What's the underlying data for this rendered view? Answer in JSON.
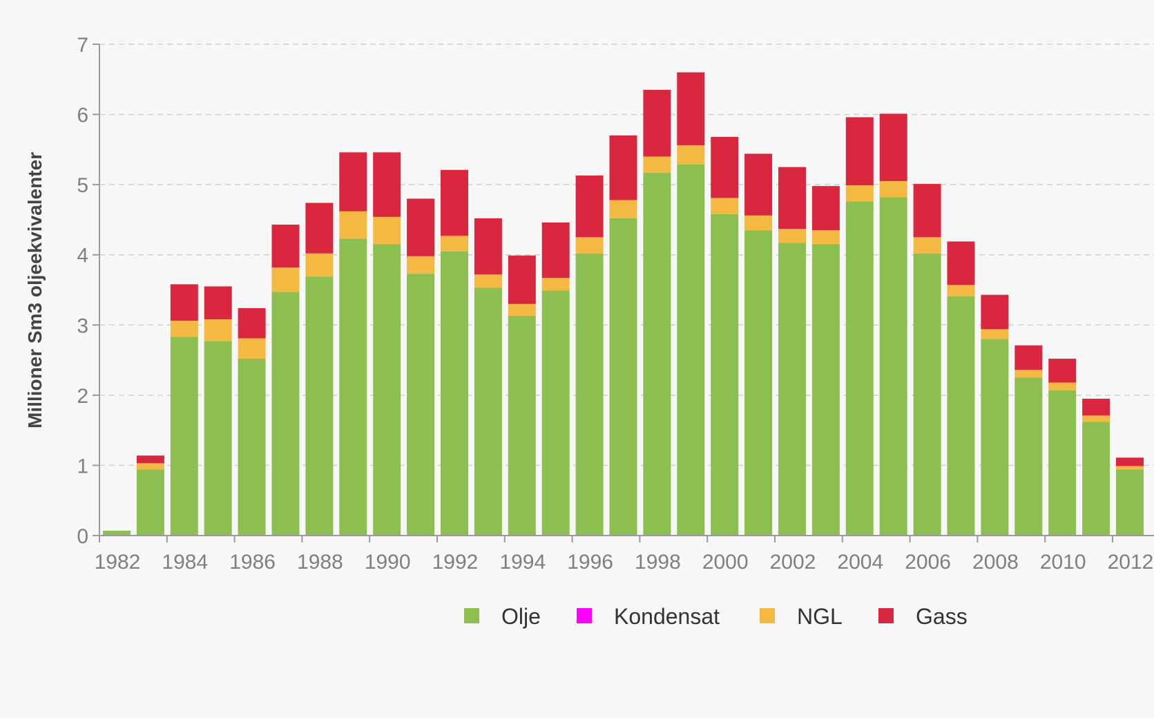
{
  "chart_data": {
    "type": "bar",
    "stacked": true,
    "ylabel": "Millioner  Sm3 oljeekvivalenter",
    "xlabel": "",
    "ylim": [
      0,
      7
    ],
    "yticks": [
      0,
      1,
      2,
      3,
      4,
      5,
      6,
      7
    ],
    "x_tick_labels": [
      "1982",
      "1984",
      "1986",
      "1988",
      "1990",
      "1992",
      "1994",
      "1996",
      "1998",
      "2000",
      "2002",
      "2004",
      "2006",
      "2008",
      "2010",
      "2012"
    ],
    "grid": true,
    "legend_position": "bottom",
    "categories": [
      "1982",
      "1983",
      "1984",
      "1985",
      "1986",
      "1987",
      "1988",
      "1989",
      "1990",
      "1991",
      "1992",
      "1993",
      "1994",
      "1995",
      "1996",
      "1997",
      "1998",
      "1999",
      "2000",
      "2001",
      "2002",
      "2003",
      "2004",
      "2005",
      "2006",
      "2007",
      "2008",
      "2009",
      "2010",
      "2011",
      "2012"
    ],
    "series": [
      {
        "name": "Olje",
        "color": "#8cbf50",
        "values": [
          0.07,
          0.94,
          2.83,
          2.77,
          2.52,
          3.47,
          3.69,
          4.23,
          4.15,
          3.73,
          4.05,
          3.53,
          3.13,
          3.49,
          4.02,
          4.52,
          5.17,
          5.29,
          4.58,
          4.35,
          4.17,
          4.15,
          4.76,
          4.82,
          4.02,
          3.41,
          2.8,
          2.25,
          2.07,
          1.62,
          0.94
        ]
      },
      {
        "name": "Kondensat",
        "color": "#ff00ff",
        "values": [
          0,
          0,
          0,
          0,
          0,
          0,
          0,
          0,
          0,
          0,
          0,
          0,
          0,
          0,
          0,
          0,
          0,
          0,
          0,
          0,
          0,
          0,
          0,
          0,
          0,
          0,
          0,
          0,
          0,
          0,
          0
        ]
      },
      {
        "name": "NGL",
        "color": "#f4b942",
        "values": [
          0,
          0.09,
          0.23,
          0.31,
          0.29,
          0.35,
          0.33,
          0.39,
          0.39,
          0.25,
          0.22,
          0.19,
          0.17,
          0.18,
          0.23,
          0.26,
          0.23,
          0.27,
          0.23,
          0.21,
          0.2,
          0.2,
          0.23,
          0.23,
          0.23,
          0.16,
          0.14,
          0.11,
          0.11,
          0.09,
          0.05
        ]
      },
      {
        "name": "Gass",
        "color": "#d9273f",
        "values": [
          0,
          0.11,
          0.52,
          0.47,
          0.43,
          0.61,
          0.72,
          0.84,
          0.92,
          0.82,
          0.94,
          0.8,
          0.69,
          0.79,
          0.88,
          0.92,
          0.95,
          1.04,
          0.87,
          0.88,
          0.88,
          0.63,
          0.97,
          0.96,
          0.76,
          0.62,
          0.49,
          0.35,
          0.34,
          0.24,
          0.12
        ]
      }
    ]
  }
}
